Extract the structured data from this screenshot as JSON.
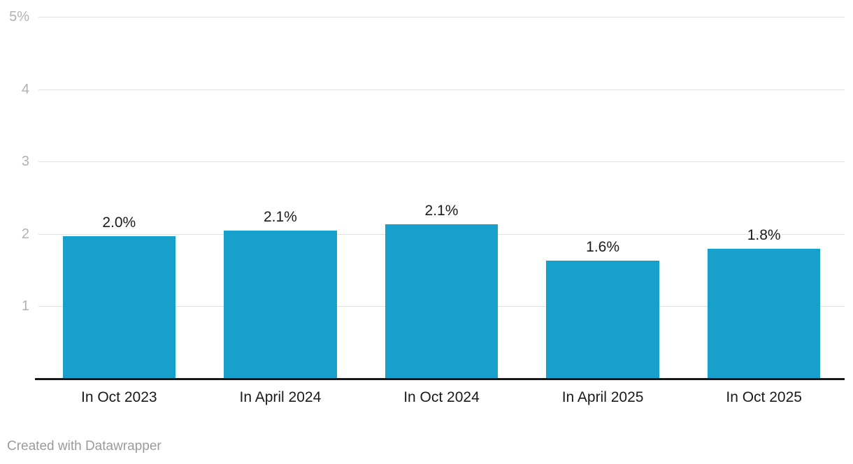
{
  "footer": {
    "credit": "Created with Datawrapper"
  },
  "colors": {
    "background": "#ffffff",
    "bar": "#18a0cc",
    "gridline": "#e0e0e0",
    "axis_line": "#161719",
    "tick_label": "#b2b2b2",
    "value_label": "#1a1a1a",
    "x_label": "#1a1a1a",
    "credit_text": "#9b9b9b"
  },
  "chart_data": {
    "type": "bar",
    "title": "",
    "xlabel": "",
    "ylabel": "",
    "categories": [
      "In Oct 2023",
      "In April 2024",
      "In Oct 2024",
      "In April 2025",
      "In Oct 2025"
    ],
    "values": [
      2.0,
      2.1,
      2.1,
      1.6,
      1.8
    ],
    "value_labels": [
      "2.0%",
      "2.1%",
      "2.1%",
      "1.6%",
      "1.8%"
    ],
    "precise_values": [
      1.97,
      2.05,
      2.13,
      1.63,
      1.8
    ],
    "ylim": [
      0,
      5
    ],
    "yticks": [
      {
        "value": 5,
        "label": "5%"
      },
      {
        "value": 4,
        "label": "4"
      },
      {
        "value": 3,
        "label": "3"
      },
      {
        "value": 2,
        "label": "2"
      },
      {
        "value": 1,
        "label": "1"
      }
    ],
    "grid": true,
    "legend": false,
    "bar_color": "#18a0cc"
  }
}
